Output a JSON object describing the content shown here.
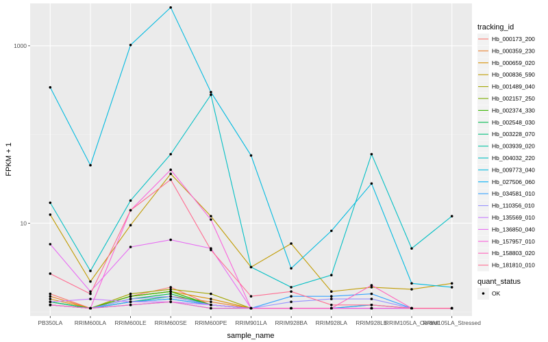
{
  "chart_data": {
    "type": "line",
    "xlabel": "sample_name",
    "ylabel": "FPKM + 1",
    "y_scale": "log10",
    "ylim": [
      0.9,
      3000
    ],
    "y_ticks": [
      10,
      1000
    ],
    "y_tick_labels": [
      "10",
      "1000"
    ],
    "grid": true,
    "legend_position": "right",
    "categories": [
      "PB350LA",
      "RRIM600LA",
      "RRIM600LE",
      "RRIM600SE",
      "RRIM600PE",
      "RRIM901LA",
      "RRIM928BA",
      "RRIM928LA",
      "RRIM928LE",
      "RRIM105LA_Control",
      "RRIM105LA_Stressed"
    ],
    "series": [
      {
        "name": "Hb_000173_200",
        "color": "#F8766D",
        "values": [
          1.6,
          1.1,
          1.5,
          1.9,
          1.2,
          1.1,
          1.1,
          1.1,
          1.2,
          1.1,
          1.1
        ]
      },
      {
        "name": "Hb_000359_230",
        "color": "#EA8331",
        "values": [
          1.5,
          1.1,
          1.3,
          1.5,
          1.3,
          1.1,
          1.1,
          1.1,
          1.1,
          1.1,
          1.1
        ]
      },
      {
        "name": "Hb_000659_020",
        "color": "#D89000",
        "values": [
          1.4,
          1.1,
          1.5,
          1.7,
          1.4,
          1.1,
          1.1,
          1.1,
          1.1,
          1.1,
          1.1
        ]
      },
      {
        "name": "Hb_000836_590",
        "color": "#C09B00",
        "values": [
          12.5,
          2.2,
          9.5,
          36,
          12,
          3.2,
          5.9,
          1.7,
          1.9,
          1.8,
          2.1
        ]
      },
      {
        "name": "Hb_001489_040",
        "color": "#A3A500",
        "values": [
          1.3,
          1.1,
          1.6,
          1.8,
          1.6,
          1.1,
          1.1,
          1.1,
          1.1,
          1.1,
          1.1
        ]
      },
      {
        "name": "Hb_002157_250",
        "color": "#7CAE00",
        "values": [
          1.2,
          1.1,
          1.5,
          1.7,
          1.2,
          1.1,
          1.1,
          1.1,
          1.1,
          1.1,
          1.1
        ]
      },
      {
        "name": "Hb_002374_330",
        "color": "#39B600",
        "values": [
          1.3,
          1.1,
          1.5,
          1.7,
          1.2,
          1.1,
          1.1,
          1.1,
          1.1,
          1.1,
          1.1
        ]
      },
      {
        "name": "Hb_002548_030",
        "color": "#00BB4E",
        "values": [
          1.2,
          1.1,
          1.4,
          1.6,
          1.2,
          1.1,
          1.1,
          1.1,
          1.1,
          1.1,
          1.1
        ]
      },
      {
        "name": "Hb_003228_070",
        "color": "#00BF7D",
        "values": [
          1.3,
          1.1,
          1.3,
          1.5,
          1.2,
          1.1,
          1.1,
          1.1,
          1.1,
          1.1,
          1.1
        ]
      },
      {
        "name": "Hb_003939_020",
        "color": "#00C1A3",
        "values": [
          1.2,
          1.1,
          1.3,
          1.4,
          1.2,
          1.1,
          1.1,
          1.1,
          1.1,
          1.1,
          1.1
        ]
      },
      {
        "name": "Hb_004032_220",
        "color": "#00BFC4",
        "values": [
          17,
          2.9,
          18,
          60,
          280,
          3.2,
          1.9,
          2.6,
          60,
          5.2,
          12
        ]
      },
      {
        "name": "Hb_009773_040",
        "color": "#00BAE0",
        "values": [
          340,
          45,
          1020,
          2700,
          300,
          58,
          3.1,
          8.2,
          28,
          2.1,
          1.9
        ]
      },
      {
        "name": "Hb_027506_060",
        "color": "#00B0F6",
        "values": [
          1.2,
          1.1,
          1.2,
          1.3,
          1.1,
          1.1,
          1.1,
          1.1,
          1.2,
          1.1,
          1.1
        ]
      },
      {
        "name": "Hb_034581_010",
        "color": "#35A2FF",
        "values": [
          1.2,
          1.1,
          1.3,
          1.4,
          1.2,
          1.1,
          1.5,
          1.5,
          1.6,
          1.1,
          1.1
        ]
      },
      {
        "name": "Hb_110356_010",
        "color": "#9590FF",
        "values": [
          1.2,
          1.1,
          1.4,
          1.5,
          1.2,
          1.1,
          1.3,
          1.4,
          1.4,
          1.1,
          1.1
        ]
      },
      {
        "name": "Hb_135569_010",
        "color": "#C77CFF",
        "values": [
          1.3,
          1.4,
          1.3,
          1.3,
          1.2,
          1.1,
          1.1,
          1.1,
          1.1,
          1.1,
          1.1
        ]
      },
      {
        "name": "Hb_136850_040",
        "color": "#E76BF3",
        "values": [
          5.8,
          1.7,
          5.4,
          6.5,
          5.2,
          1.1,
          1.1,
          1.1,
          1.1,
          1.1,
          1.1
        ]
      },
      {
        "name": "Hb_157957_010",
        "color": "#FA62DB",
        "values": [
          1.2,
          1.1,
          14,
          40,
          11,
          1.1,
          1.1,
          1.1,
          1.1,
          1.1,
          1.1
        ]
      },
      {
        "name": "Hb_158803_020",
        "color": "#FF62BC",
        "values": [
          1.2,
          1.1,
          1.2,
          1.3,
          1.1,
          1.1,
          1.1,
          1.1,
          2.0,
          1.1,
          1.1
        ]
      },
      {
        "name": "Hb_181810_010",
        "color": "#FF6C91",
        "values": [
          2.7,
          1.6,
          14,
          31,
          5.0,
          1.5,
          1.7,
          1.2,
          1.2,
          1.1,
          1.1
        ]
      }
    ]
  },
  "legend": {
    "color_title": "tracking_id",
    "status_title": "quant_status",
    "status_items": [
      "OK"
    ]
  }
}
